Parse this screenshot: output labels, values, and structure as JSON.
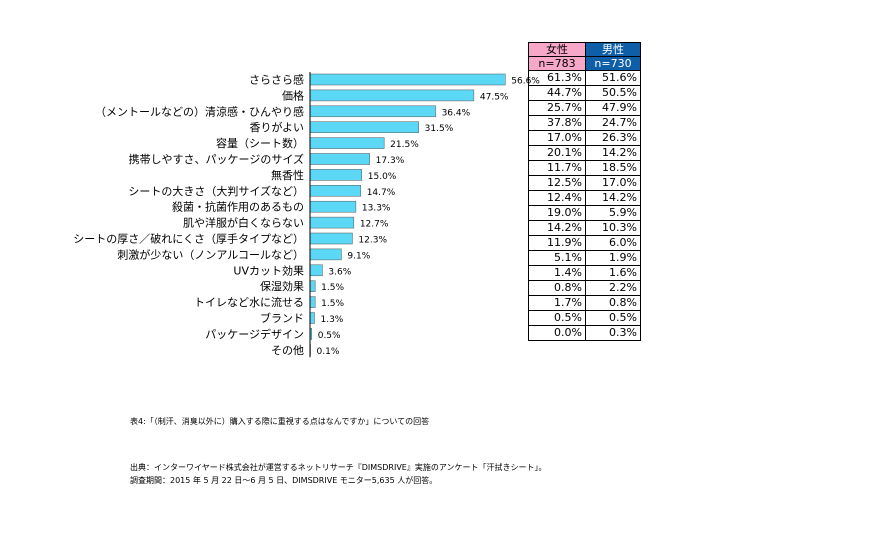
{
  "chart_data": {
    "type": "bar",
    "orientation": "horizontal",
    "categories": [
      "さらさら感",
      "価格",
      "（メントールなどの）清涼感・ひんやり感",
      "香りがよい",
      "容量（シート数）",
      "携帯しやすさ、パッケージのサイズ",
      "無香性",
      "シートの大きさ（大判サイズなど）",
      "殺菌・抗菌作用のあるもの",
      "肌や洋服が白くならない",
      "シートの厚さ／破れにくさ（厚手タイプなど）",
      "刺激が少ない（ノンアルコールなど）",
      "UVカット効果",
      "保湿効果",
      "トイレなど水に流せる",
      "ブランド",
      "パッケージデザイン",
      "その他"
    ],
    "values": [
      56.6,
      47.5,
      36.4,
      31.5,
      21.5,
      17.3,
      15.0,
      14.7,
      13.3,
      12.7,
      12.3,
      9.1,
      3.6,
      1.5,
      1.5,
      1.3,
      0.5,
      0.1
    ],
    "value_labels": [
      "56.6%",
      "47.5%",
      "36.4%",
      "31.5%",
      "21.5%",
      "17.3%",
      "15.0%",
      "14.7%",
      "13.3%",
      "12.7%",
      "12.3%",
      "9.1%",
      "3.6%",
      "1.5%",
      "1.5%",
      "1.3%",
      "0.5%",
      "0.1%"
    ],
    "xlim": [
      0,
      60
    ],
    "bar_color": "#5bd8f5",
    "grid": false,
    "table": {
      "headers": [
        {
          "label": "女性",
          "n": "n=783",
          "color": "#f7a8c8"
        },
        {
          "label": "男性",
          "n": "n=730",
          "color": "#0f5ea8"
        }
      ],
      "women": [
        "61.3%",
        "44.7%",
        "25.7%",
        "37.8%",
        "17.0%",
        "20.1%",
        "11.7%",
        "12.5%",
        "12.4%",
        "19.0%",
        "14.2%",
        "11.9%",
        "5.1%",
        "1.4%",
        "0.8%",
        "1.7%",
        "0.5%",
        "0.0%"
      ],
      "men": [
        "51.6%",
        "50.5%",
        "47.9%",
        "24.7%",
        "26.3%",
        "14.2%",
        "18.5%",
        "17.0%",
        "14.2%",
        "5.9%",
        "10.3%",
        "6.0%",
        "1.9%",
        "1.6%",
        "2.2%",
        "0.8%",
        "0.5%",
        "0.3%"
      ]
    }
  },
  "notes": {
    "caption": "表4:「（制汗、消臭以外に）購入する際に重視する点はなんですか」についての回答",
    "source": "出典：インターワイヤード株式会社が運営するネットリサーチ『DIMSDRIVE』実施のアンケート「汗拭きシート」。",
    "period": "調査期間：2015 年 5 月 22 日～6 月 5 日、DIMSDRIVE モニター5,635 人が回答。"
  }
}
